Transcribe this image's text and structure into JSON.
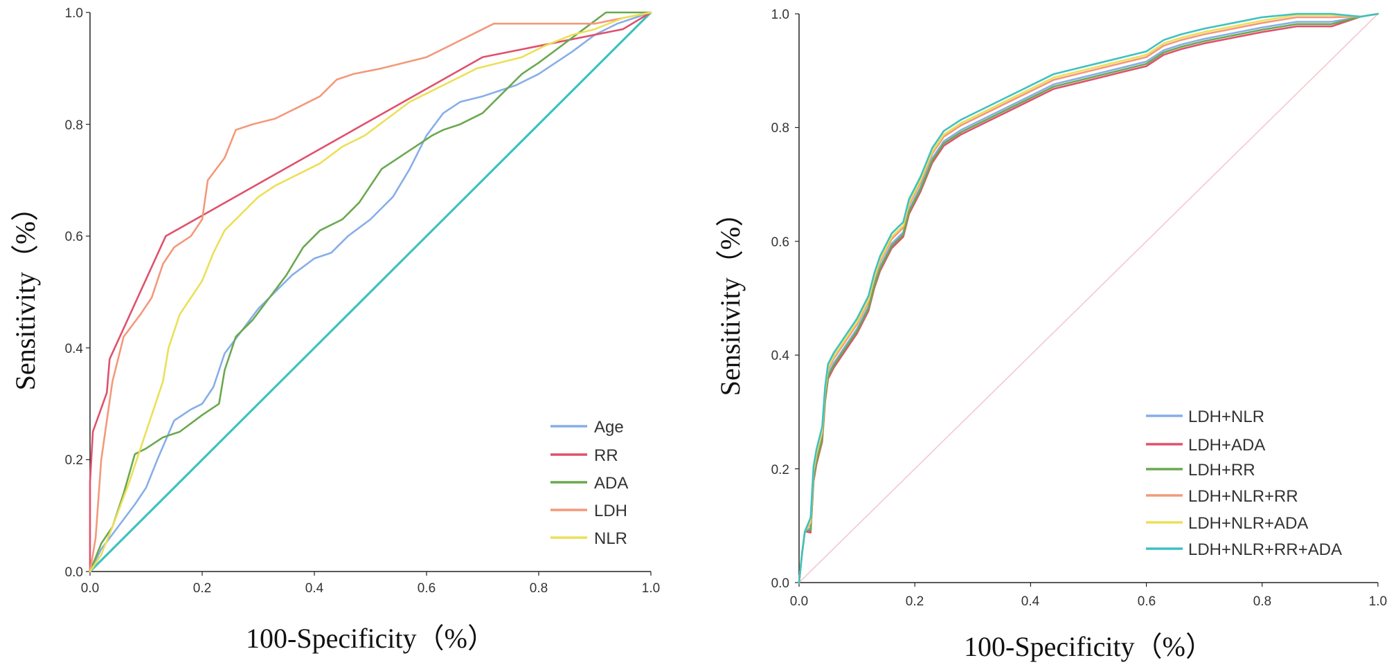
{
  "chart_data": [
    {
      "type": "line",
      "chart_kind": "ROC curve",
      "xlabel": "100-Specificity（%）",
      "ylabel": "Sensitivity（%）",
      "xlim": [
        0,
        1
      ],
      "ylim": [
        0,
        1
      ],
      "x_ticks": [
        "0.0",
        "0.2",
        "0.4",
        "0.6",
        "0.8",
        "1.0"
      ],
      "y_ticks": [
        "0.0",
        "0.2",
        "0.4",
        "0.6",
        "0.8",
        "1.0"
      ],
      "legend_position": "bottom-right",
      "reference_line": {
        "color": "#3ec1c1",
        "points": [
          [
            0,
            0
          ],
          [
            1,
            1
          ]
        ]
      },
      "series": [
        {
          "name": "Age",
          "color": "#86aee8",
          "points": [
            [
              0,
              0
            ],
            [
              0.02,
              0.04
            ],
            [
              0.05,
              0.08
            ],
            [
              0.08,
              0.12
            ],
            [
              0.1,
              0.15
            ],
            [
              0.12,
              0.2
            ],
            [
              0.15,
              0.27
            ],
            [
              0.18,
              0.29
            ],
            [
              0.2,
              0.3
            ],
            [
              0.22,
              0.33
            ],
            [
              0.24,
              0.39
            ],
            [
              0.27,
              0.43
            ],
            [
              0.3,
              0.47
            ],
            [
              0.33,
              0.5
            ],
            [
              0.36,
              0.53
            ],
            [
              0.4,
              0.56
            ],
            [
              0.43,
              0.57
            ],
            [
              0.46,
              0.6
            ],
            [
              0.5,
              0.63
            ],
            [
              0.54,
              0.67
            ],
            [
              0.57,
              0.72
            ],
            [
              0.6,
              0.78
            ],
            [
              0.63,
              0.82
            ],
            [
              0.66,
              0.84
            ],
            [
              0.7,
              0.85
            ],
            [
              0.73,
              0.86
            ],
            [
              0.76,
              0.87
            ],
            [
              0.8,
              0.89
            ],
            [
              0.83,
              0.91
            ],
            [
              0.86,
              0.93
            ],
            [
              0.9,
              0.96
            ],
            [
              0.94,
              0.98
            ],
            [
              0.97,
              0.99
            ],
            [
              1,
              1
            ]
          ]
        },
        {
          "name": "RR",
          "color": "#e0506c",
          "points": [
            [
              0,
              0
            ],
            [
              0,
              0.16
            ],
            [
              0.005,
              0.25
            ],
            [
              0.03,
              0.32
            ],
            [
              0.035,
              0.38
            ],
            [
              0.135,
              0.6
            ],
            [
              0.7,
              0.92
            ],
            [
              0.95,
              0.97
            ],
            [
              1,
              1
            ]
          ]
        },
        {
          "name": "ADA",
          "color": "#6aa84f",
          "points": [
            [
              0,
              0
            ],
            [
              0.02,
              0.05
            ],
            [
              0.04,
              0.08
            ],
            [
              0.06,
              0.14
            ],
            [
              0.08,
              0.21
            ],
            [
              0.1,
              0.22
            ],
            [
              0.13,
              0.24
            ],
            [
              0.16,
              0.25
            ],
            [
              0.2,
              0.28
            ],
            [
              0.23,
              0.3
            ],
            [
              0.24,
              0.36
            ],
            [
              0.26,
              0.42
            ],
            [
              0.29,
              0.45
            ],
            [
              0.32,
              0.49
            ],
            [
              0.35,
              0.53
            ],
            [
              0.38,
              0.58
            ],
            [
              0.41,
              0.61
            ],
            [
              0.45,
              0.63
            ],
            [
              0.48,
              0.66
            ],
            [
              0.52,
              0.72
            ],
            [
              0.55,
              0.74
            ],
            [
              0.58,
              0.76
            ],
            [
              0.61,
              0.78
            ],
            [
              0.63,
              0.79
            ],
            [
              0.66,
              0.8
            ],
            [
              0.7,
              0.82
            ],
            [
              0.73,
              0.85
            ],
            [
              0.77,
              0.89
            ],
            [
              0.8,
              0.91
            ],
            [
              0.84,
              0.94
            ],
            [
              0.88,
              0.97
            ],
            [
              0.92,
              1
            ],
            [
              1,
              1
            ]
          ]
        },
        {
          "name": "LDH",
          "color": "#f4987a",
          "points": [
            [
              0,
              0
            ],
            [
              0.01,
              0.06
            ],
            [
              0.02,
              0.2
            ],
            [
              0.04,
              0.34
            ],
            [
              0.06,
              0.42
            ],
            [
              0.09,
              0.46
            ],
            [
              0.11,
              0.49
            ],
            [
              0.13,
              0.55
            ],
            [
              0.15,
              0.58
            ],
            [
              0.18,
              0.6
            ],
            [
              0.2,
              0.63
            ],
            [
              0.21,
              0.7
            ],
            [
              0.24,
              0.74
            ],
            [
              0.26,
              0.79
            ],
            [
              0.29,
              0.8
            ],
            [
              0.33,
              0.81
            ],
            [
              0.37,
              0.83
            ],
            [
              0.41,
              0.85
            ],
            [
              0.44,
              0.88
            ],
            [
              0.47,
              0.89
            ],
            [
              0.52,
              0.9
            ],
            [
              0.56,
              0.91
            ],
            [
              0.6,
              0.92
            ],
            [
              0.64,
              0.94
            ],
            [
              0.68,
              0.96
            ],
            [
              0.72,
              0.98
            ],
            [
              0.8,
              0.98
            ],
            [
              0.9,
              0.98
            ],
            [
              1,
              1
            ]
          ]
        },
        {
          "name": "NLR",
          "color": "#ecdf57",
          "points": [
            [
              0,
              0
            ],
            [
              0.02,
              0.03
            ],
            [
              0.04,
              0.08
            ],
            [
              0.07,
              0.16
            ],
            [
              0.09,
              0.22
            ],
            [
              0.11,
              0.28
            ],
            [
              0.13,
              0.34
            ],
            [
              0.14,
              0.4
            ],
            [
              0.16,
              0.46
            ],
            [
              0.18,
              0.49
            ],
            [
              0.2,
              0.52
            ],
            [
              0.22,
              0.57
            ],
            [
              0.24,
              0.61
            ],
            [
              0.27,
              0.64
            ],
            [
              0.3,
              0.67
            ],
            [
              0.33,
              0.69
            ],
            [
              0.37,
              0.71
            ],
            [
              0.41,
              0.73
            ],
            [
              0.45,
              0.76
            ],
            [
              0.49,
              0.78
            ],
            [
              0.53,
              0.81
            ],
            [
              0.57,
              0.84
            ],
            [
              0.61,
              0.86
            ],
            [
              0.65,
              0.88
            ],
            [
              0.69,
              0.9
            ],
            [
              0.73,
              0.91
            ],
            [
              0.77,
              0.92
            ],
            [
              0.81,
              0.94
            ],
            [
              0.86,
              0.96
            ],
            [
              0.9,
              0.97
            ],
            [
              0.95,
              0.99
            ],
            [
              1,
              1
            ]
          ]
        }
      ]
    },
    {
      "type": "line",
      "chart_kind": "ROC curve",
      "xlabel": "100-Specificity（%）",
      "ylabel": "Sensitivity（%）",
      "xlim": [
        0,
        1
      ],
      "ylim": [
        0,
        1
      ],
      "x_ticks": [
        "0.0",
        "0.2",
        "0.4",
        "0.6",
        "0.8",
        "1.0"
      ],
      "y_ticks": [
        "0.0",
        "0.2",
        "0.4",
        "0.6",
        "0.8",
        "1.0"
      ],
      "legend_position": "bottom-right",
      "reference_line": {
        "color": "#f7c6d0",
        "points": [
          [
            0,
            0
          ],
          [
            1,
            1
          ]
        ]
      },
      "series": [
        {
          "name": "LDH+NLR",
          "color": "#86aee8",
          "offset": -0.004
        },
        {
          "name": "LDH+ADA",
          "color": "#e0506c",
          "offset": -0.012
        },
        {
          "name": "LDH+RR",
          "color": "#6aa84f",
          "offset": -0.008
        },
        {
          "name": "LDH+NLR+RR",
          "color": "#f4987a",
          "offset": 0.004
        },
        {
          "name": "LDH+NLR+ADA",
          "color": "#ecdf57",
          "offset": 0.008
        },
        {
          "name": "LDH+NLR+RR+ADA",
          "color": "#3ec1c1",
          "offset": 0.014
        }
      ],
      "base_curve": [
        [
          0,
          0
        ],
        [
          0.005,
          0.05
        ],
        [
          0.01,
          0.09
        ],
        [
          0.02,
          0.1
        ],
        [
          0.025,
          0.19
        ],
        [
          0.03,
          0.22
        ],
        [
          0.04,
          0.26
        ],
        [
          0.045,
          0.33
        ],
        [
          0.05,
          0.37
        ],
        [
          0.06,
          0.39
        ],
        [
          0.08,
          0.42
        ],
        [
          0.1,
          0.45
        ],
        [
          0.12,
          0.49
        ],
        [
          0.13,
          0.53
        ],
        [
          0.14,
          0.56
        ],
        [
          0.16,
          0.6
        ],
        [
          0.18,
          0.62
        ],
        [
          0.19,
          0.66
        ],
        [
          0.21,
          0.7
        ],
        [
          0.23,
          0.75
        ],
        [
          0.25,
          0.78
        ],
        [
          0.28,
          0.8
        ],
        [
          0.32,
          0.82
        ],
        [
          0.36,
          0.84
        ],
        [
          0.4,
          0.86
        ],
        [
          0.44,
          0.88
        ],
        [
          0.48,
          0.89
        ],
        [
          0.52,
          0.9
        ],
        [
          0.56,
          0.91
        ],
        [
          0.6,
          0.92
        ],
        [
          0.63,
          0.94
        ],
        [
          0.66,
          0.95
        ],
        [
          0.7,
          0.96
        ],
        [
          0.75,
          0.97
        ],
        [
          0.8,
          0.98
        ],
        [
          0.86,
          0.99
        ],
        [
          0.92,
          0.99
        ],
        [
          0.97,
          0.995
        ],
        [
          1,
          1
        ]
      ]
    }
  ]
}
